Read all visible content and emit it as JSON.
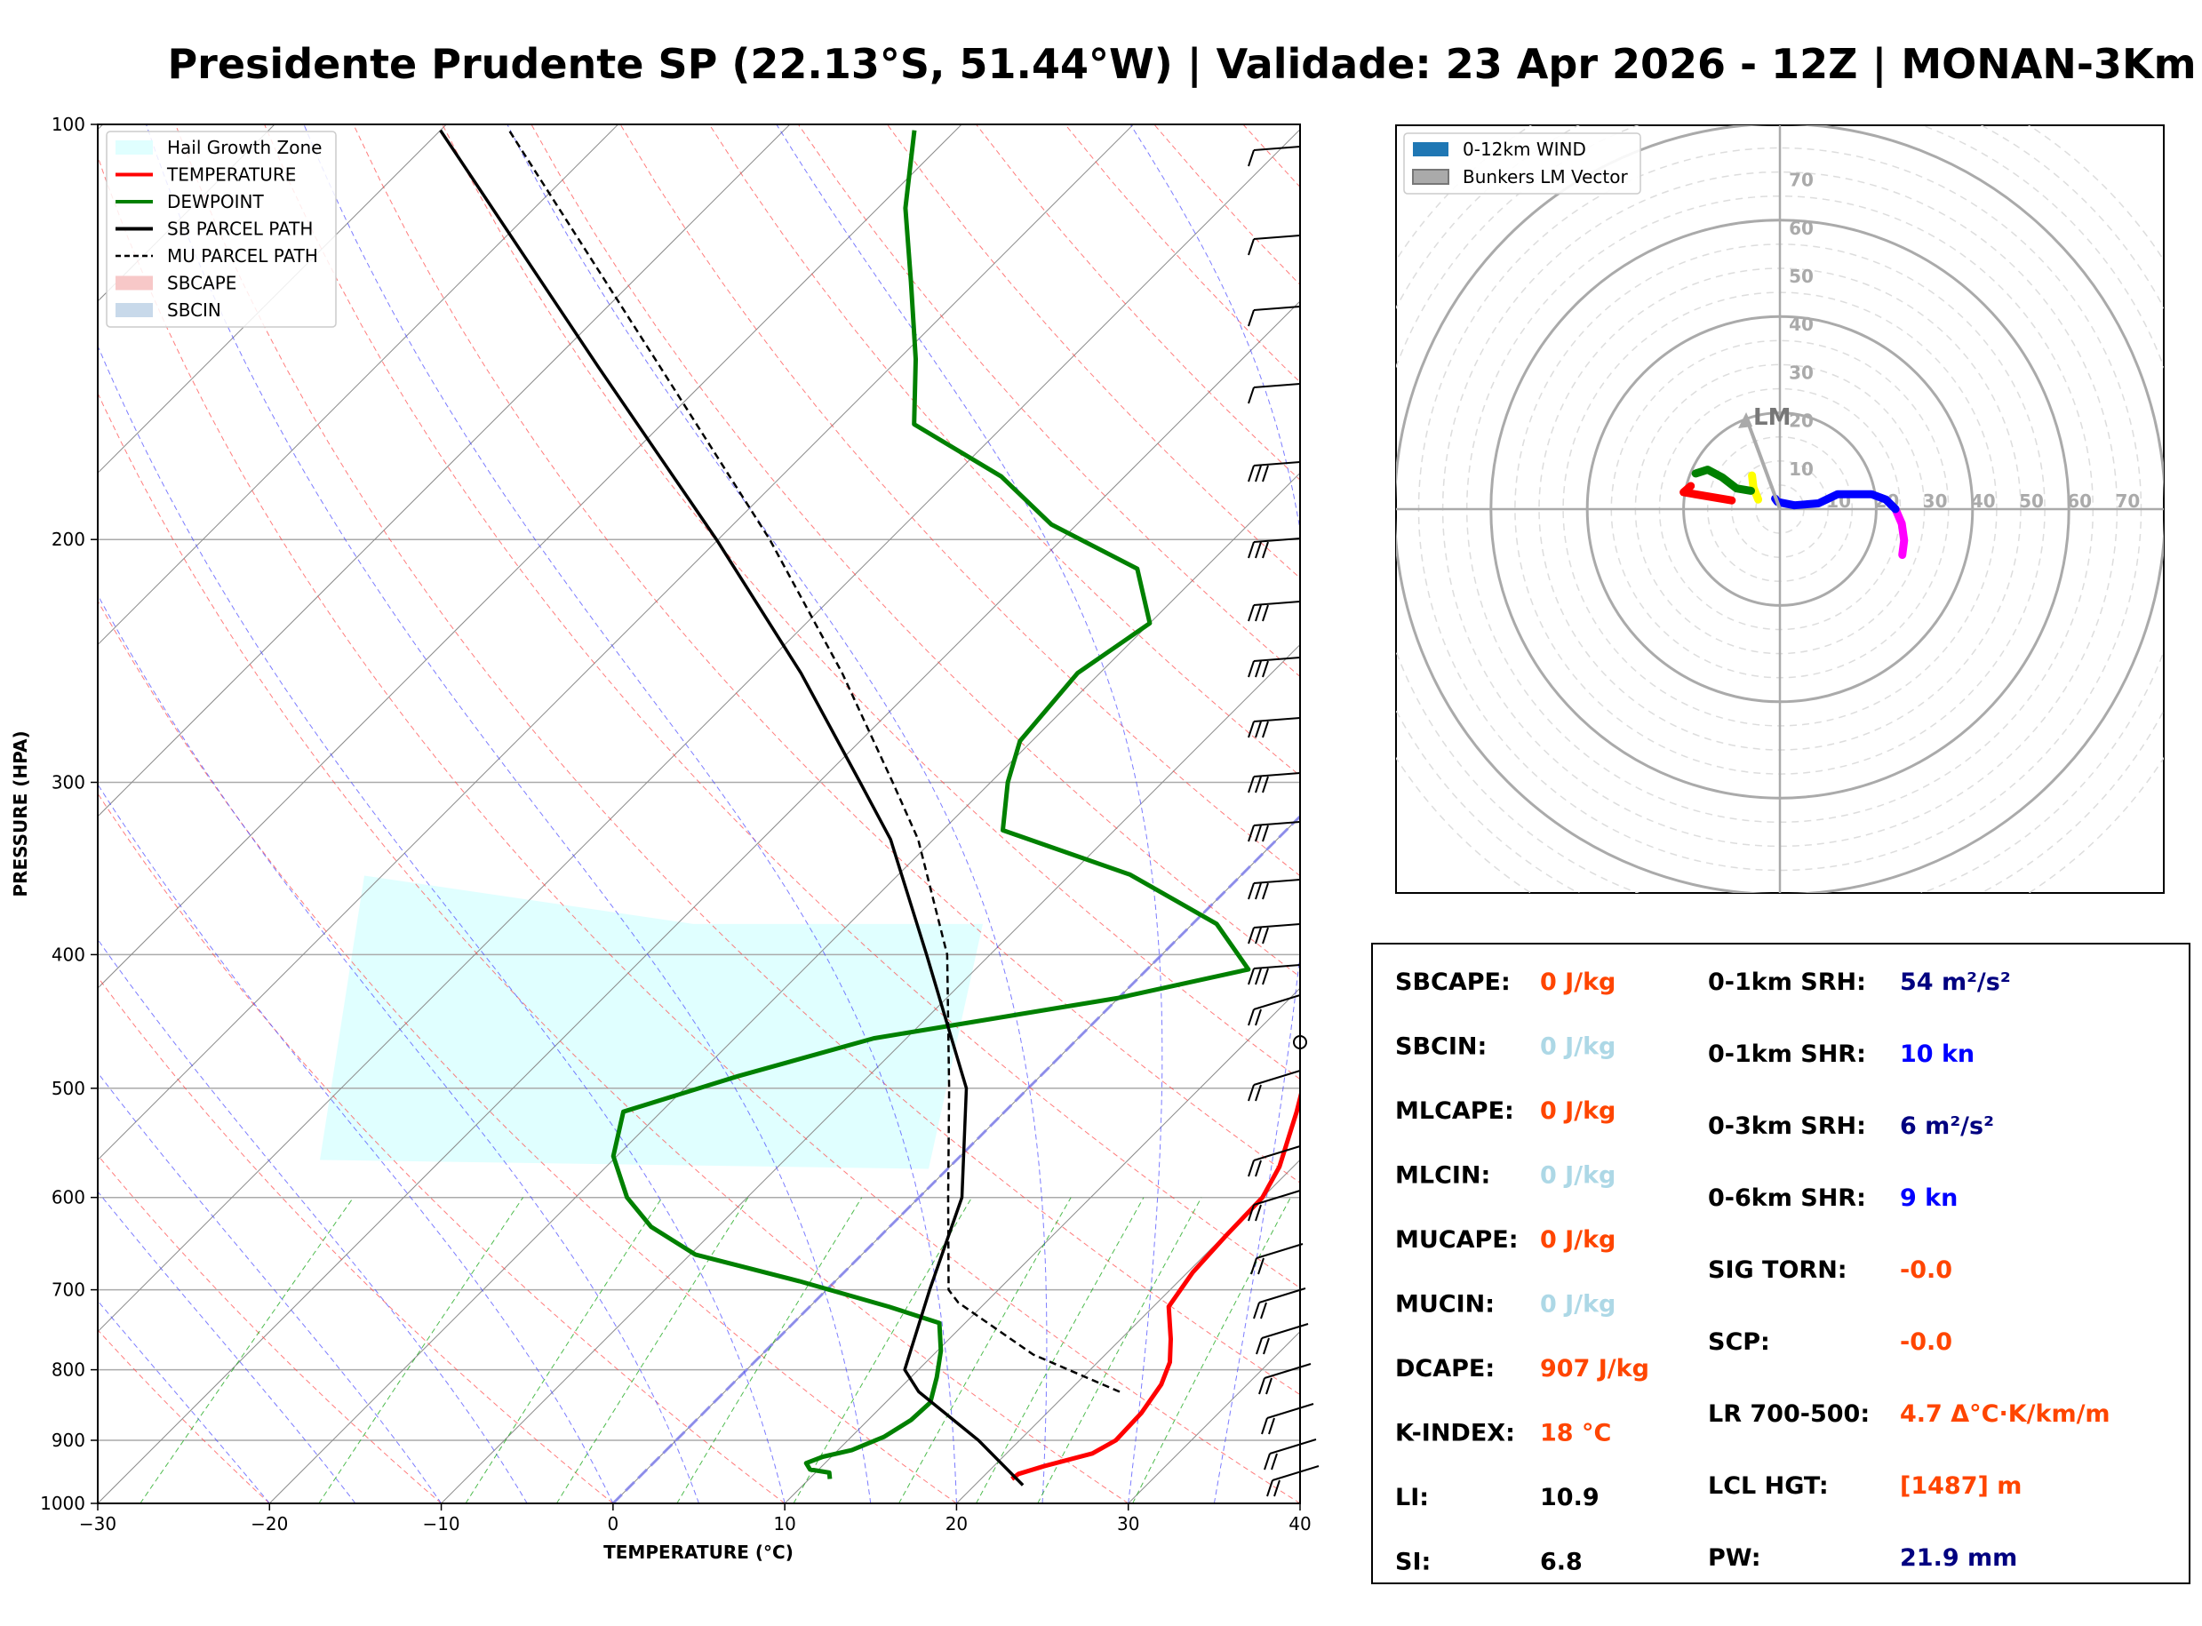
{
  "title": "Presidente Prudente SP (22.13°S, 51.44°W) | Validade: 23 Apr 2026 - 12Z | MONAN-3Km",
  "colors": {
    "temperature": "#ff0000",
    "dewpoint": "#008000",
    "sb_parcel": "#000000",
    "mu_parcel": "#000000",
    "hail_zone": "#e0ffff",
    "sbcape": "#f7c8c8",
    "sbcin": "#c8d9ea",
    "isotherm": "#8a8a8a",
    "dry_adiabat": "#ff4444",
    "moist_adiabat": "#4444ff",
    "mixing_ratio": "#22aa22",
    "hodo_wind": "#1f77b4",
    "bunkers": "#aaaaaa"
  },
  "chart_data": [
    {
      "type": "line",
      "subtype": "skew-t",
      "xlabel": "TEMPERATURE (°C)",
      "ylabel": "PRESSURE (HPA)",
      "xlim": [
        -30,
        40
      ],
      "ylim": [
        1000,
        100
      ],
      "y_scale": "log",
      "grid": true,
      "x_ticks": [
        -30,
        -20,
        -10,
        0,
        10,
        20,
        30,
        40
      ],
      "x_tick_labels": [
        "−30",
        "−20",
        "−10",
        "0",
        "10",
        "20",
        "30",
        "40"
      ],
      "y_ticks": [
        1000,
        900,
        800,
        700,
        600,
        500,
        400,
        300,
        200,
        100
      ],
      "y_tick_labels": [
        "1000",
        "900",
        "800",
        "700",
        "600",
        "500",
        "400",
        "300",
        "200",
        "100"
      ],
      "legend": {
        "placement": "top-left",
        "entries": [
          {
            "label": "Hail Growth Zone",
            "kind": "patch",
            "color": "#e0ffff"
          },
          {
            "label": "TEMPERATURE",
            "kind": "line",
            "color": "#ff0000",
            "dash": "solid"
          },
          {
            "label": "DEWPOINT",
            "kind": "line",
            "color": "#008000",
            "dash": "solid"
          },
          {
            "label": "SB PARCEL PATH",
            "kind": "line",
            "color": "#000000",
            "dash": "solid"
          },
          {
            "label": "MU PARCEL PATH",
            "kind": "line",
            "color": "#000000",
            "dash": "dashed"
          },
          {
            "label": "SBCAPE",
            "kind": "patch",
            "color": "#f7c8c8"
          },
          {
            "label": "SBCIN",
            "kind": "patch",
            "color": "#c8d9ea"
          }
        ]
      },
      "series": [
        {
          "name": "TEMPERATURE",
          "points": [
            [
              960,
              21.8
            ],
            [
              952,
              21.9
            ],
            [
              940,
              22.9
            ],
            [
              920,
              25.0
            ],
            [
              900,
              25.6
            ],
            [
              860,
              25.5
            ],
            [
              820,
              25.0
            ],
            [
              790,
              24.2
            ],
            [
              760,
              22.9
            ],
            [
              720,
              20.9
            ],
            [
              680,
              20.3
            ],
            [
              640,
              20.1
            ],
            [
              600,
              20.0
            ],
            [
              570,
              19.2
            ],
            [
              520,
              17.0
            ],
            [
              460,
              13.8
            ],
            [
              420,
              11.3
            ],
            [
              385,
              8.6
            ],
            [
              360,
              6.4
            ],
            [
              330,
              3.8
            ],
            [
              300,
              0.0
            ],
            [
              270,
              -4.5
            ],
            [
              245,
              -8.7
            ],
            [
              220,
              -12.3
            ],
            [
              200,
              -14.8
            ],
            [
              180,
              -17.8
            ],
            [
              162,
              -21.7
            ],
            [
              148,
              -25.0
            ],
            [
              135,
              -27.7
            ],
            [
              120,
              -30.8
            ],
            [
              110,
              -32.8
            ],
            [
              101,
              -34.7
            ]
          ]
        },
        {
          "name": "DEWPOINT",
          "points": [
            [
              960,
              11.2
            ],
            [
              950,
              10.8
            ],
            [
              945,
              9.5
            ],
            [
              935,
              8.9
            ],
            [
              925,
              9.5
            ],
            [
              915,
              10.8
            ],
            [
              895,
              11.9
            ],
            [
              870,
              12.5
            ],
            [
              845,
              12.6
            ],
            [
              810,
              11.5
            ],
            [
              775,
              10.2
            ],
            [
              740,
              8.5
            ],
            [
              720,
              4.6
            ],
            [
              690,
              -2.1
            ],
            [
              660,
              -9.7
            ],
            [
              630,
              -13.9
            ],
            [
              600,
              -17.0
            ],
            [
              560,
              -20.2
            ],
            [
              520,
              -22.2
            ],
            [
              490,
              -17.6
            ],
            [
              460,
              -11.9
            ],
            [
              430,
              0.0
            ],
            [
              410,
              5.9
            ],
            [
              380,
              1.4
            ],
            [
              350,
              -6.5
            ],
            [
              325,
              -16.5
            ],
            [
              300,
              -19.0
            ],
            [
              280,
              -20.7
            ],
            [
              250,
              -21.3
            ],
            [
              230,
              -20.0
            ],
            [
              210,
              -23.9
            ],
            [
              195,
              -31.5
            ],
            [
              180,
              -37.2
            ],
            [
              165,
              -45.3
            ],
            [
              148,
              -49.0
            ],
            [
              130,
              -53.8
            ],
            [
              115,
              -58.4
            ],
            [
              101,
              -62.4
            ]
          ]
        },
        {
          "name": "SB PARCEL PATH",
          "points": [
            [
              970,
              22.8
            ],
            [
              900,
              17.6
            ],
            [
              830,
              11.3
            ],
            [
              800,
              9.2
            ],
            [
              700,
              6.0
            ],
            [
              600,
              2.5
            ],
            [
              500,
              -3.6
            ],
            [
              400,
              -13.7
            ],
            [
              330,
              -22.5
            ],
            [
              300,
              -27.6
            ],
            [
              250,
              -37.4
            ],
            [
              200,
              -50.1
            ],
            [
              150,
              -67.0
            ],
            [
              101,
              -90.0
            ]
          ]
        },
        {
          "name": "MU PARCEL PATH",
          "points": [
            [
              830,
              23.0
            ],
            [
              780,
              15.8
            ],
            [
              715,
              8.4
            ],
            [
              700,
              7.1
            ],
            [
              600,
              1.7
            ],
            [
              500,
              -4.6
            ],
            [
              400,
              -12.5
            ],
            [
              330,
              -20.9
            ],
            [
              300,
              -25.7
            ],
            [
              250,
              -35.0
            ],
            [
              200,
              -47.0
            ],
            [
              150,
              -63.4
            ],
            [
              101,
              -86.0
            ]
          ]
        }
      ],
      "hail_growth_zone": {
        "p_bottom": 572,
        "p_top": 380
      }
    },
    {
      "type": "scatter",
      "subtype": "hodograph",
      "rings": [
        10,
        20,
        30,
        40,
        50,
        60,
        70
      ],
      "x_tick_labels": [
        "10",
        "20",
        "30",
        "40",
        "50",
        "60",
        "70"
      ],
      "y_tick_labels": [
        "10",
        "20",
        "30",
        "40",
        "50",
        "60",
        "70"
      ],
      "grid": true,
      "legend": {
        "placement": "top-left",
        "entries": [
          {
            "label": "0-12km WIND",
            "kind": "patch",
            "color": "#1f77b4"
          },
          {
            "label": "Bunkers LM Vector",
            "kind": "patch",
            "color": "#aaaaaa"
          }
        ]
      },
      "segments": [
        {
          "color": "#ff00ff",
          "points": [
            [
              24,
              0
            ],
            [
              25.3,
              -3
            ],
            [
              25.8,
              -6.5
            ],
            [
              25.4,
              -9.5
            ]
          ]
        },
        {
          "color": "#0000ff",
          "points": [
            [
              24,
              0
            ],
            [
              22,
              2
            ],
            [
              19,
              3.1
            ],
            [
              12,
              3.1
            ],
            [
              8,
              1.2
            ],
            [
              3,
              0.8
            ],
            [
              -0.5,
              1.5
            ],
            [
              -1,
              2.2
            ]
          ]
        },
        {
          "color": "#ffff00",
          "points": [
            [
              -4.5,
              2
            ],
            [
              -5.5,
              4.5
            ],
            [
              -5.8,
              7
            ]
          ]
        },
        {
          "color": "#008000",
          "points": [
            [
              -6,
              3.8
            ],
            [
              -9,
              4.3
            ],
            [
              -12,
              6.6
            ],
            [
              -15,
              8.2
            ],
            [
              -17.5,
              7.4
            ]
          ]
        },
        {
          "color": "#ff0000",
          "points": [
            [
              -18.5,
              4.8
            ],
            [
              -20,
              3.5
            ],
            [
              -10,
              1.8
            ]
          ]
        }
      ],
      "bunkers_lm": {
        "label": "LM",
        "u": -7,
        "v": 19
      }
    }
  ],
  "indices": {
    "left": [
      {
        "label": "SBCAPE:",
        "value": "0 J/kg",
        "color": "#ff4500"
      },
      {
        "label": "SBCIN:",
        "value": "0 J/kg",
        "color": "#add8e6"
      },
      {
        "label": "MLCAPE:",
        "value": "0 J/kg",
        "color": "#ff4500"
      },
      {
        "label": "MLCIN:",
        "value": "0 J/kg",
        "color": "#add8e6"
      },
      {
        "label": "MUCAPE:",
        "value": "0 J/kg",
        "color": "#ff4500"
      },
      {
        "label": "MUCIN:",
        "value": "0 J/kg",
        "color": "#add8e6"
      },
      {
        "label": "DCAPE:",
        "value": "907 J/kg",
        "color": "#ff4500"
      },
      {
        "label": "K-INDEX:",
        "value": "18 °C",
        "color": "#ff4500"
      },
      {
        "label": "LI:",
        "value": "10.9",
        "color": "#000000"
      },
      {
        "label": "SI:",
        "value": "6.8",
        "color": "#000000"
      }
    ],
    "right": [
      {
        "label": "0-1km SRH:",
        "value": "54 m²/s²",
        "color": "#000080"
      },
      {
        "label": "0-1km SHR:",
        "value": "10 kn",
        "color": "#0000ff"
      },
      {
        "label": "0-3km SRH:",
        "value": "6 m²/s²",
        "color": "#000080"
      },
      {
        "label": "0-6km SHR:",
        "value": "9 kn",
        "color": "#0000ff"
      },
      {
        "label": "SIG TORN:",
        "value": "-0.0",
        "color": "#ff4500"
      },
      {
        "label": "SCP:",
        "value": "-0.0",
        "color": "#ff4500"
      },
      {
        "label": "LR 700-500:",
        "value": "4.7 Δ°C·K/km/m",
        "color": "#ff4500"
      },
      {
        "label": "LCL HGT:",
        "value": "[1487] m",
        "color": "#ff4500"
      },
      {
        "label": "PW:",
        "value": "21.9 mm",
        "color": "#000080"
      }
    ]
  }
}
